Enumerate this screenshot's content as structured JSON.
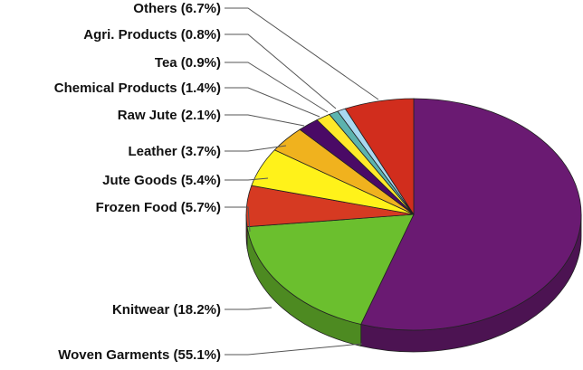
{
  "chart_data": {
    "type": "pie",
    "title": "",
    "categories": [
      "Woven Garments",
      "Knitwear",
      "Frozen Food",
      "Jute Goods",
      "Leather",
      "Raw Jute",
      "Chemical Products",
      "Tea",
      "Agri. Products",
      "Others"
    ],
    "values": [
      55.1,
      18.2,
      5.7,
      5.4,
      3.7,
      2.1,
      1.4,
      0.9,
      0.8,
      6.7
    ],
    "labels": [
      "Woven Garments  (55.1%)",
      "Knitwear (18.2%)",
      "Frozen Food (5.7%)",
      "Jute Goods (5.4%)",
      "Leather (3.7%)",
      "Raw Jute (2.1%)",
      "Chemical Products (1.4%)",
      "Tea (0.9%)",
      "Agri. Products (0.8%)",
      "Others (6.7%)"
    ],
    "colors": [
      "#6a1a72",
      "#6bbf2e",
      "#d63a22",
      "#fff21a",
      "#f0b21e",
      "#4a0a66",
      "#ffe92a",
      "#5cb3ae",
      "#a9d8f0",
      "#d12d1d"
    ],
    "style": "3d-pie",
    "legend": "none"
  }
}
